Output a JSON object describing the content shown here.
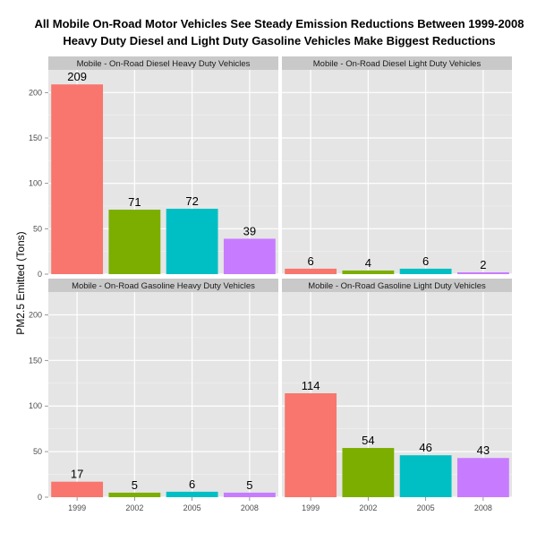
{
  "chart_data": {
    "type": "bar",
    "title_lines": [
      "All Mobile On-Road Motor Vehicles See Steady Emission Reductions Between 1999-2008",
      "Heavy Duty Diesel and Light Duty Gasoline Vehicles Make Biggest Reductions"
    ],
    "xlabel": "",
    "ylabel": "PM2.5 Emitted (Tons)",
    "categories": [
      "1999",
      "2002",
      "2005",
      "2008"
    ],
    "ylim": [
      0,
      225
    ],
    "yticks": [
      0,
      50,
      100,
      150,
      200
    ],
    "grid": true,
    "facet_layout": "2x2",
    "colors": [
      "#f8766d",
      "#7cae00",
      "#00bfc4",
      "#c77cff"
    ],
    "panels": [
      {
        "label": "Mobile - On-Road Diesel Heavy Duty Vehicles",
        "values": [
          209,
          71,
          72,
          39
        ],
        "value_labels": [
          "209",
          "71",
          "72",
          "39"
        ]
      },
      {
        "label": "Mobile - On-Road Diesel Light Duty Vehicles",
        "values": [
          6,
          4,
          6,
          2
        ],
        "value_labels": [
          "6",
          "4",
          "6",
          "2"
        ]
      },
      {
        "label": "Mobile - On-Road Gasoline Heavy Duty Vehicles",
        "values": [
          17,
          5,
          6,
          5
        ],
        "value_labels": [
          "17",
          "5",
          "6",
          "5"
        ]
      },
      {
        "label": "Mobile - On-Road Gasoline Light Duty Vehicles",
        "values": [
          114,
          54,
          46,
          43
        ],
        "value_labels": [
          "114",
          "54",
          "46",
          "43"
        ]
      }
    ]
  }
}
